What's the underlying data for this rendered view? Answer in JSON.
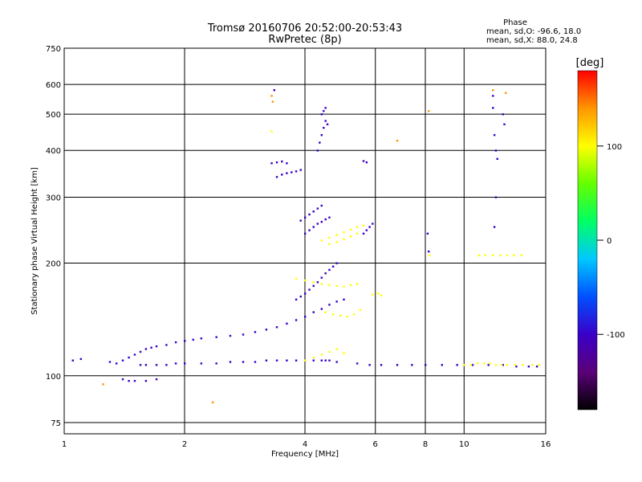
{
  "chart_data": {
    "type": "scatter",
    "title": "Tromsø 20160706 20:52:00-20:53:43",
    "subtitle": "RwPretec (8p)",
    "xlabel": "Frequency [MHz]",
    "ylabel": "Stationary phase Virtual Height [km]",
    "x_scale": "log",
    "y_scale": "log",
    "xlim": [
      1,
      16
    ],
    "ylim": [
      70,
      750
    ],
    "x_ticks": [
      1,
      2,
      4,
      6,
      8,
      10,
      16
    ],
    "x_tick_labels": [
      "1",
      "2",
      "4",
      "6",
      "8",
      "10",
      "16"
    ],
    "y_ticks": [
      75,
      100,
      200,
      300,
      400,
      500,
      600,
      750
    ],
    "y_tick_labels": [
      "75",
      "100",
      "200",
      "300",
      "400",
      "500",
      "600",
      "750"
    ],
    "grid": true,
    "stats": {
      "heading": "Phase",
      "line_o": "mean, sd,O: -96.6, 18.0",
      "line_x": "mean, sd,X:  88.0, 24.8"
    },
    "colorbar": {
      "unit": "[deg]",
      "range": [
        -180,
        180
      ],
      "ticks": [
        100,
        0,
        -100
      ],
      "tick_labels": [
        "100",
        "0",
        "-100"
      ],
      "colors": [
        "#000000",
        "#5a0078",
        "#3a00c8",
        "#0050ff",
        "#00c8ff",
        "#00ff64",
        "#64ff00",
        "#ffff00",
        "#ff9600",
        "#ff0000"
      ]
    },
    "series": [
      {
        "mode": "O",
        "phase_deg": -100,
        "x": [
          1.05,
          1.1,
          1.3,
          1.35,
          1.4,
          1.45,
          1.5,
          1.55,
          1.6,
          1.65,
          1.7,
          1.8,
          1.9,
          2.0,
          2.1,
          2.2,
          2.4,
          2.6,
          2.8,
          3.0,
          3.2,
          3.4,
          3.6,
          3.8,
          4.0,
          4.2,
          4.4,
          4.6,
          4.8,
          5.0,
          5.4,
          5.8,
          6.2,
          6.8,
          7.4,
          8.0,
          8.8,
          9.6,
          10.5,
          11.5,
          12.5,
          13.5,
          14.5,
          15.2,
          1.55,
          1.6,
          1.7,
          1.8,
          1.9,
          2.0,
          2.2,
          2.4,
          2.6,
          2.8,
          3.0,
          3.2,
          3.4,
          3.6,
          3.8,
          4.0,
          4.2,
          4.4,
          4.5,
          4.6,
          4.8,
          1.4,
          1.45,
          1.5,
          1.6,
          1.7,
          3.8,
          3.9,
          4.0,
          4.1,
          4.2,
          4.3,
          4.4,
          4.5,
          4.6,
          4.7,
          4.8,
          3.4,
          3.5,
          3.6,
          3.7,
          3.8,
          3.9,
          4.0,
          4.1,
          4.2,
          4.3,
          4.4,
          4.5,
          4.6,
          3.9,
          4.0,
          4.1,
          4.2,
          4.3,
          4.4,
          3.3,
          3.4,
          3.5,
          3.6,
          4.3,
          4.35,
          4.4,
          4.45,
          4.5,
          4.4,
          4.45,
          4.5,
          4.55,
          5.6,
          5.7,
          5.8,
          5.9,
          5.6,
          5.7,
          3.35,
          11.8,
          11.8,
          11.9,
          12.0,
          12.1,
          12.0,
          8.1,
          8.15,
          11.9,
          12.5,
          12.6
        ],
        "y": [
          110,
          111,
          109,
          108,
          110,
          112,
          114,
          116,
          118,
          119,
          120,
          121,
          123,
          124,
          125,
          126,
          127,
          128,
          129,
          131,
          133,
          135,
          138,
          141,
          144,
          148,
          151,
          155,
          158,
          160,
          108,
          107,
          107,
          107,
          107,
          107,
          107,
          107,
          107,
          107,
          107,
          106,
          106,
          106,
          107,
          107,
          107,
          107,
          108,
          108,
          108,
          108,
          109,
          109,
          109,
          110,
          110,
          110,
          110,
          110,
          110,
          110,
          110,
          110,
          109,
          98,
          97,
          97,
          97,
          98,
          160,
          163,
          166,
          170,
          174,
          178,
          183,
          188,
          192,
          196,
          200,
          340,
          345,
          348,
          350,
          352,
          355,
          240,
          245,
          250,
          255,
          258,
          262,
          265,
          260,
          265,
          270,
          275,
          280,
          285,
          370,
          372,
          374,
          370,
          400,
          420,
          440,
          460,
          480,
          500,
          510,
          520,
          470,
          240,
          245,
          250,
          255,
          375,
          372,
          580,
          560,
          520,
          440,
          400,
          380,
          300,
          240,
          215,
          250,
          500,
          470
        ]
      },
      {
        "mode": "X",
        "phase_deg": 90,
        "x": [
          3.8,
          4.0,
          4.2,
          4.4,
          4.6,
          4.8,
          5.0,
          5.2,
          5.4,
          4.5,
          4.7,
          4.9,
          5.1,
          5.3,
          5.5,
          4.6,
          4.8,
          5.0,
          5.2,
          5.4,
          4.4,
          4.6,
          4.8,
          5.0,
          5.2,
          5.4,
          5.6,
          4.0,
          4.2,
          4.4,
          4.6,
          4.8,
          5.0,
          10.0,
          10.4,
          10.8,
          11.2,
          11.6,
          12.0,
          12.4,
          12.8,
          13.4,
          14.0,
          14.8,
          15.4,
          8.2,
          10.9,
          11.3,
          11.8,
          12.3,
          12.8,
          13.3,
          13.9,
          5.9,
          6.1,
          6.2,
          3.3
        ],
        "y": [
          182,
          180,
          178,
          176,
          175,
          174,
          173,
          175,
          176,
          148,
          146,
          145,
          144,
          146,
          150,
          225,
          228,
          232,
          236,
          240,
          230,
          234,
          238,
          242,
          246,
          250,
          252,
          110,
          112,
          114,
          116,
          118,
          115,
          107,
          107,
          108,
          108,
          108,
          107,
          107,
          107,
          107,
          107,
          107,
          107,
          210,
          210,
          210,
          210,
          210,
          210,
          210,
          210,
          165,
          166,
          164,
          450
        ]
      },
      {
        "mode": "other",
        "phase_deg": 150,
        "x": [
          3.3,
          3.32,
          8.15,
          6.8,
          11.8,
          2.35,
          1.25,
          12.7
        ],
        "y": [
          560,
          540,
          510,
          425,
          580,
          85,
          95,
          570
        ]
      }
    ]
  }
}
